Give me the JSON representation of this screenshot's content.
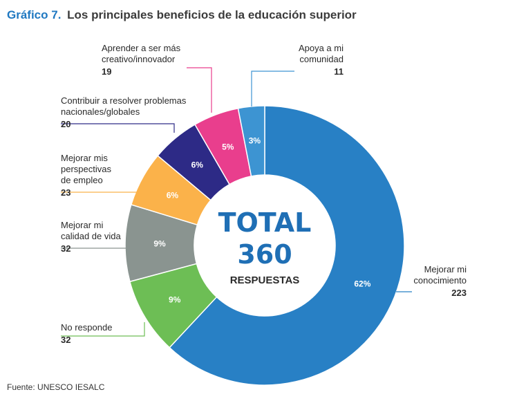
{
  "header": {
    "number": "Gráfico 7.",
    "title": "Los principales beneficios de la educación superior"
  },
  "source": "Fuente: UNESCO IESALC",
  "chart_data": {
    "type": "pie",
    "title": "Los principales beneficios de la educación superior",
    "center": {
      "line1": "TOTAL",
      "line2": "360",
      "line3": "RESPUESTAS"
    },
    "slices": [
      {
        "label": [
          "Mejorar mi",
          "conocimiento"
        ],
        "value": 223,
        "percent": "62%",
        "color": "#2880c5"
      },
      {
        "label": [
          "No responde"
        ],
        "value": 32,
        "percent": "9%",
        "color": "#6dbe55"
      },
      {
        "label": [
          "Mejorar mi",
          "calidad de vida"
        ],
        "value": 32,
        "percent": "9%",
        "color": "#8a9490"
      },
      {
        "label": [
          "Mejorar mis",
          "perspectivas",
          "de empleo"
        ],
        "value": 23,
        "percent": "6%",
        "color": "#fbb24a"
      },
      {
        "label": [
          "Contribuir a resolver problemas",
          "nacionales/globales"
        ],
        "value": 20,
        "percent": "6%",
        "color": "#2d2a86"
      },
      {
        "label": [
          "Aprender a ser más",
          "creativo/innovador"
        ],
        "value": 19,
        "percent": "5%",
        "color": "#e93e8d"
      },
      {
        "label": [
          "Apoya a mi",
          "comunidad"
        ],
        "value": 11,
        "percent": "3%",
        "color": "#3d94d2"
      }
    ]
  }
}
